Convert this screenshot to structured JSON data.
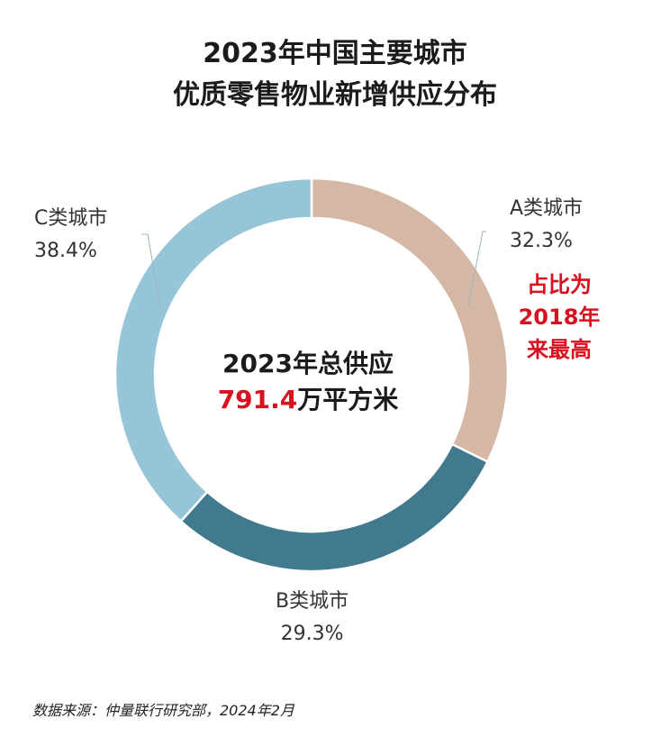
{
  "title": [
    "2023年中国主要城市",
    "优质零售物业新增供应分布"
  ],
  "center": {
    "line1": "2023年总供应",
    "value": "791.4",
    "unit": "万平方米"
  },
  "note": [
    "占比为",
    "2018年",
    "来最高"
  ],
  "source": "数据来源：仲量联行研究部，2024年2月",
  "chart_data": {
    "type": "pie",
    "donut": true,
    "slices": [
      {
        "name": "A类城市",
        "value": 32.3,
        "label": "32.3%",
        "color": "#d4b8a5"
      },
      {
        "name": "B类城市",
        "value": 29.3,
        "label": "29.3%",
        "color": "#417a8e"
      },
      {
        "name": "C类城市",
        "value": 38.4,
        "label": "38.4%",
        "color": "#95c5d6"
      }
    ]
  }
}
